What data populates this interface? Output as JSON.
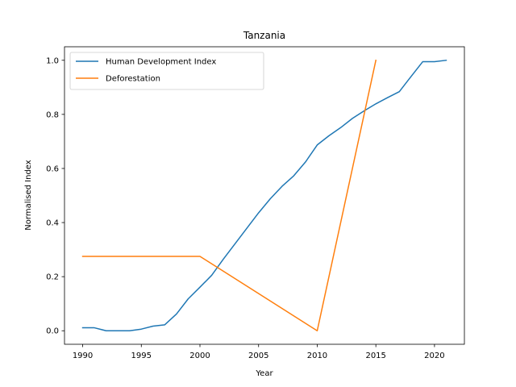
{
  "chart_data": {
    "type": "line",
    "title": "Tanzania",
    "xlabel": "Year",
    "ylabel": "Normalised Index",
    "xlim": [
      1988.45,
      2022.55
    ],
    "ylim": [
      -0.05,
      1.05
    ],
    "xticks": [
      1990,
      1995,
      2000,
      2005,
      2010,
      2015,
      2020
    ],
    "yticks": [
      0.0,
      0.2,
      0.4,
      0.6,
      0.8,
      1.0
    ],
    "ytick_labels": [
      "0.0",
      "0.2",
      "0.4",
      "0.6",
      "0.8",
      "1.0"
    ],
    "grid": false,
    "legend_position": "top-left",
    "series": [
      {
        "name": "Human Development Index",
        "color": "#1f77b4",
        "x": [
          1990,
          1991,
          1992,
          1993,
          1994,
          1995,
          1996,
          1997,
          1998,
          1999,
          2000,
          2001,
          2002,
          2003,
          2004,
          2005,
          2006,
          2007,
          2008,
          2009,
          2010,
          2011,
          2012,
          2013,
          2014,
          2015,
          2016,
          2017,
          2018,
          2019,
          2020,
          2021
        ],
        "y": [
          0.011,
          0.011,
          0.0,
          0.0,
          0.0,
          0.006,
          0.017,
          0.022,
          0.062,
          0.118,
          0.161,
          0.205,
          0.265,
          0.322,
          0.379,
          0.436,
          0.488,
          0.534,
          0.573,
          0.624,
          0.687,
          0.721,
          0.751,
          0.785,
          0.813,
          0.839,
          0.862,
          0.884,
          0.94,
          0.995,
          0.995,
          1.0
        ]
      },
      {
        "name": "Deforestation",
        "color": "#ff7f0e",
        "x": [
          1990,
          2000,
          2010,
          2015
        ],
        "y": [
          0.275,
          0.275,
          0.0,
          1.0
        ]
      }
    ]
  }
}
